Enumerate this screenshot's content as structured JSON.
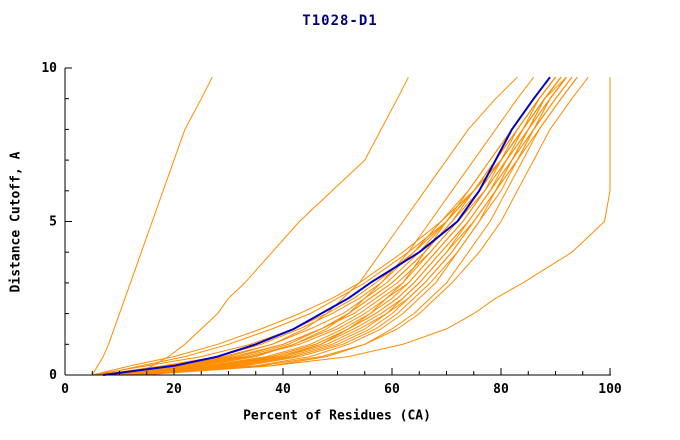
{
  "chart_data": {
    "type": "line",
    "title": "T1028-D1",
    "xlabel": "Percent of Residues (CA)",
    "ylabel": "Distance Cutoff, A",
    "xlim": [
      0,
      100
    ],
    "ylim": [
      0,
      10
    ],
    "xticks": [
      0,
      20,
      40,
      60,
      80,
      100
    ],
    "xminor": [
      5,
      10,
      15,
      25,
      30,
      35,
      45,
      50,
      55,
      65,
      70,
      75,
      85,
      90,
      95
    ],
    "yticks": [
      0,
      5,
      10
    ],
    "yminor": [
      1,
      2,
      3,
      4,
      6,
      7,
      8,
      9
    ],
    "grid": false,
    "legend": "none",
    "colors": {
      "orange": "#ff8c00",
      "blue": "#0000cc",
      "axis": "#000000",
      "title": "#000080"
    },
    "y_samples": [
      0,
      0.3,
      0.6,
      1,
      1.5,
      2,
      2.5,
      3,
      4,
      5,
      6,
      7,
      8,
      9,
      9.7
    ],
    "series": [
      {
        "name": "line-01",
        "color": "orange",
        "x": [
          5,
          6,
          7,
          8,
          9,
          10,
          11,
          12,
          14,
          16,
          18,
          20,
          22,
          25,
          27
        ]
      },
      {
        "name": "line-02",
        "color": "orange",
        "x": [
          12,
          16,
          19,
          22,
          25,
          28,
          30,
          33,
          38,
          43,
          49,
          55,
          58,
          61,
          63
        ]
      },
      {
        "name": "line-03",
        "color": "orange",
        "x": [
          6,
          20,
          30,
          38,
          44,
          48,
          51,
          54,
          58,
          62,
          66,
          70,
          74,
          79,
          83
        ]
      },
      {
        "name": "line-04",
        "color": "orange",
        "x": [
          8,
          25,
          35,
          42,
          48,
          52,
          55,
          58,
          63,
          67,
          71,
          75,
          79,
          83,
          86
        ]
      },
      {
        "name": "line-05",
        "color": "orange",
        "x": [
          10,
          30,
          40,
          47,
          52,
          56,
          59,
          62,
          66,
          70,
          74,
          78,
          82,
          86,
          89
        ]
      },
      {
        "name": "line-06",
        "color": "orange",
        "x": [
          7,
          22,
          33,
          41,
          47,
          52,
          56,
          60,
          66,
          71,
          75,
          79,
          83,
          87,
          90
        ]
      },
      {
        "name": "line-07",
        "color": "orange",
        "x": [
          9,
          28,
          38,
          46,
          52,
          57,
          61,
          64,
          69,
          74,
          78,
          81,
          85,
          88,
          91
        ]
      },
      {
        "name": "line-08",
        "color": "orange",
        "x": [
          11,
          32,
          42,
          50,
          56,
          60,
          63,
          66,
          71,
          75,
          79,
          82,
          86,
          89,
          92
        ]
      },
      {
        "name": "line-09",
        "color": "orange",
        "x": [
          6,
          18,
          28,
          36,
          43,
          49,
          54,
          58,
          64,
          70,
          75,
          79,
          83,
          87,
          90
        ]
      },
      {
        "name": "line-10",
        "color": "orange",
        "x": [
          8,
          24,
          34,
          43,
          50,
          55,
          59,
          63,
          68,
          73,
          77,
          81,
          84,
          88,
          91
        ]
      },
      {
        "name": "line-11",
        "color": "orange",
        "x": [
          13,
          35,
          45,
          52,
          58,
          62,
          65,
          68,
          72,
          76,
          80,
          83,
          86,
          90,
          93
        ]
      },
      {
        "name": "line-12",
        "color": "orange",
        "x": [
          5,
          15,
          25,
          34,
          42,
          48,
          53,
          57,
          64,
          69,
          74,
          78,
          82,
          86,
          89
        ]
      },
      {
        "name": "line-13",
        "color": "orange",
        "x": [
          9,
          26,
          37,
          45,
          51,
          56,
          60,
          63,
          68,
          73,
          77,
          80,
          84,
          87,
          90
        ]
      },
      {
        "name": "line-14",
        "color": "orange",
        "x": [
          12,
          33,
          43,
          51,
          57,
          61,
          64,
          67,
          72,
          76,
          79,
          83,
          86,
          89,
          92
        ]
      },
      {
        "name": "line-15",
        "color": "orange",
        "x": [
          7,
          21,
          32,
          40,
          47,
          52,
          56,
          60,
          66,
          71,
          76,
          80,
          84,
          88,
          91
        ]
      },
      {
        "name": "line-16",
        "color": "orange",
        "x": [
          10,
          29,
          39,
          47,
          53,
          58,
          62,
          65,
          70,
          74,
          78,
          82,
          85,
          89,
          92
        ]
      },
      {
        "name": "line-17",
        "color": "orange",
        "x": [
          14,
          38,
          48,
          55,
          60,
          64,
          67,
          70,
          74,
          78,
          81,
          84,
          87,
          91,
          94
        ]
      },
      {
        "name": "line-18",
        "color": "orange",
        "x": [
          6,
          19,
          29,
          38,
          45,
          51,
          55,
          59,
          65,
          70,
          75,
          79,
          83,
          87,
          90
        ]
      },
      {
        "name": "line-19",
        "color": "orange",
        "x": [
          8,
          23,
          34,
          42,
          49,
          54,
          58,
          62,
          67,
          72,
          76,
          80,
          83,
          87,
          90
        ]
      },
      {
        "name": "line-20",
        "color": "orange",
        "x": [
          11,
          31,
          41,
          49,
          55,
          59,
          63,
          66,
          71,
          75,
          79,
          82,
          85,
          88,
          91
        ]
      },
      {
        "name": "line-21",
        "color": "orange",
        "x": [
          13,
          36,
          47,
          55,
          61,
          65,
          68,
          71,
          76,
          80,
          83,
          86,
          89,
          93,
          96
        ]
      },
      {
        "name": "line-22",
        "color": "orange",
        "x": [
          12,
          38,
          52,
          62,
          70,
          75,
          79,
          84,
          93,
          99,
          100,
          100,
          100,
          100,
          100
        ]
      },
      {
        "name": "line-23",
        "color": "orange",
        "x": [
          7,
          20,
          31,
          40,
          47,
          53,
          57,
          61,
          67,
          72,
          77,
          81,
          85,
          89,
          92
        ]
      },
      {
        "name": "line-24",
        "color": "orange",
        "x": [
          9,
          27,
          38,
          46,
          52,
          57,
          61,
          64,
          69,
          74,
          78,
          82,
          86,
          90,
          93
        ]
      },
      {
        "name": "line-25",
        "color": "orange",
        "x": [
          6,
          14,
          22,
          30,
          38,
          45,
          50,
          55,
          63,
          70,
          75,
          80,
          84,
          88,
          91
        ]
      },
      {
        "name": "line-26",
        "color": "orange",
        "x": [
          10,
          28,
          40,
          48,
          54,
          59,
          62,
          65,
          70,
          75,
          79,
          83,
          87,
          91,
          94
        ]
      },
      {
        "name": "line-27",
        "color": "orange",
        "x": [
          5,
          12,
          20,
          28,
          36,
          43,
          49,
          54,
          62,
          69,
          75,
          80,
          84,
          88,
          92
        ]
      },
      {
        "name": "line-28",
        "color": "blue",
        "x": [
          7,
          20,
          28,
          35,
          42,
          47,
          52,
          56,
          65,
          72,
          76,
          79,
          82,
          86,
          89
        ]
      }
    ]
  }
}
